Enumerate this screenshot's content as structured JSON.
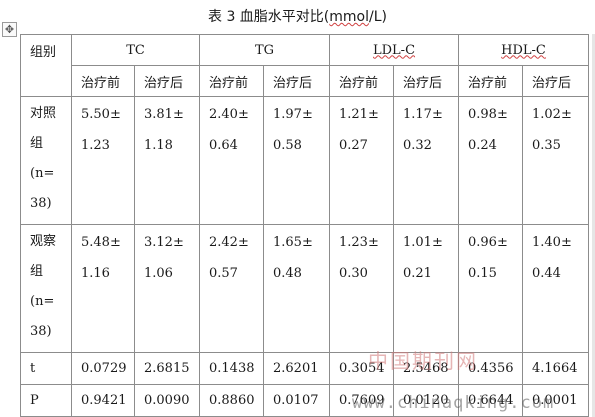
{
  "caption": {
    "prefix": "表 3 血脂水平对比(",
    "unit_underlined": "mmol",
    "suffix": "/L)"
  },
  "handle_icon": "move-cross-icon",
  "header": {
    "group_label": "组别",
    "metrics": [
      "TC",
      "TG",
      "LDL-C",
      "HDL-C"
    ],
    "pre": "治疗前",
    "post": "治疗后"
  },
  "rows": [
    {
      "group_lines": [
        "对照",
        "组",
        "(n=",
        "38)"
      ],
      "cells": [
        [
          "5.50±",
          "1.23"
        ],
        [
          "3.81±",
          "1.18"
        ],
        [
          "2.40±",
          "0.64"
        ],
        [
          "1.97±",
          "0.58"
        ],
        [
          "1.21±",
          "0.27"
        ],
        [
          "1.17±",
          "0.32"
        ],
        [
          "0.98±",
          "0.24"
        ],
        [
          "1.02±",
          "0.35"
        ]
      ]
    },
    {
      "group_lines": [
        "观察",
        "组",
        "(n=",
        "38)"
      ],
      "cells": [
        [
          "5.48±",
          "1.16"
        ],
        [
          "3.12±",
          "1.06"
        ],
        [
          "2.42±",
          "0.57"
        ],
        [
          "1.65±",
          "0.48"
        ],
        [
          "1.23±",
          "0.30"
        ],
        [
          "1.01±",
          "0.21"
        ],
        [
          "0.96±",
          "0.15"
        ],
        [
          "1.40±",
          "0.44"
        ]
      ]
    }
  ],
  "t_row": {
    "label": "t",
    "values": [
      "0.0729",
      "2.6815",
      "0.1438",
      "2.6201",
      "0.3054",
      "2.5468",
      "0.4356",
      "4.1664"
    ]
  },
  "p_row": {
    "label": "P",
    "values": [
      "0.9421",
      "0.0090",
      "0.8860",
      "0.0107",
      "0.7609",
      "0.0120",
      "0.6644",
      "0.0001"
    ]
  },
  "watermark": {
    "line1": "中国期刊网",
    "line2": "www.chinaqking.com"
  }
}
